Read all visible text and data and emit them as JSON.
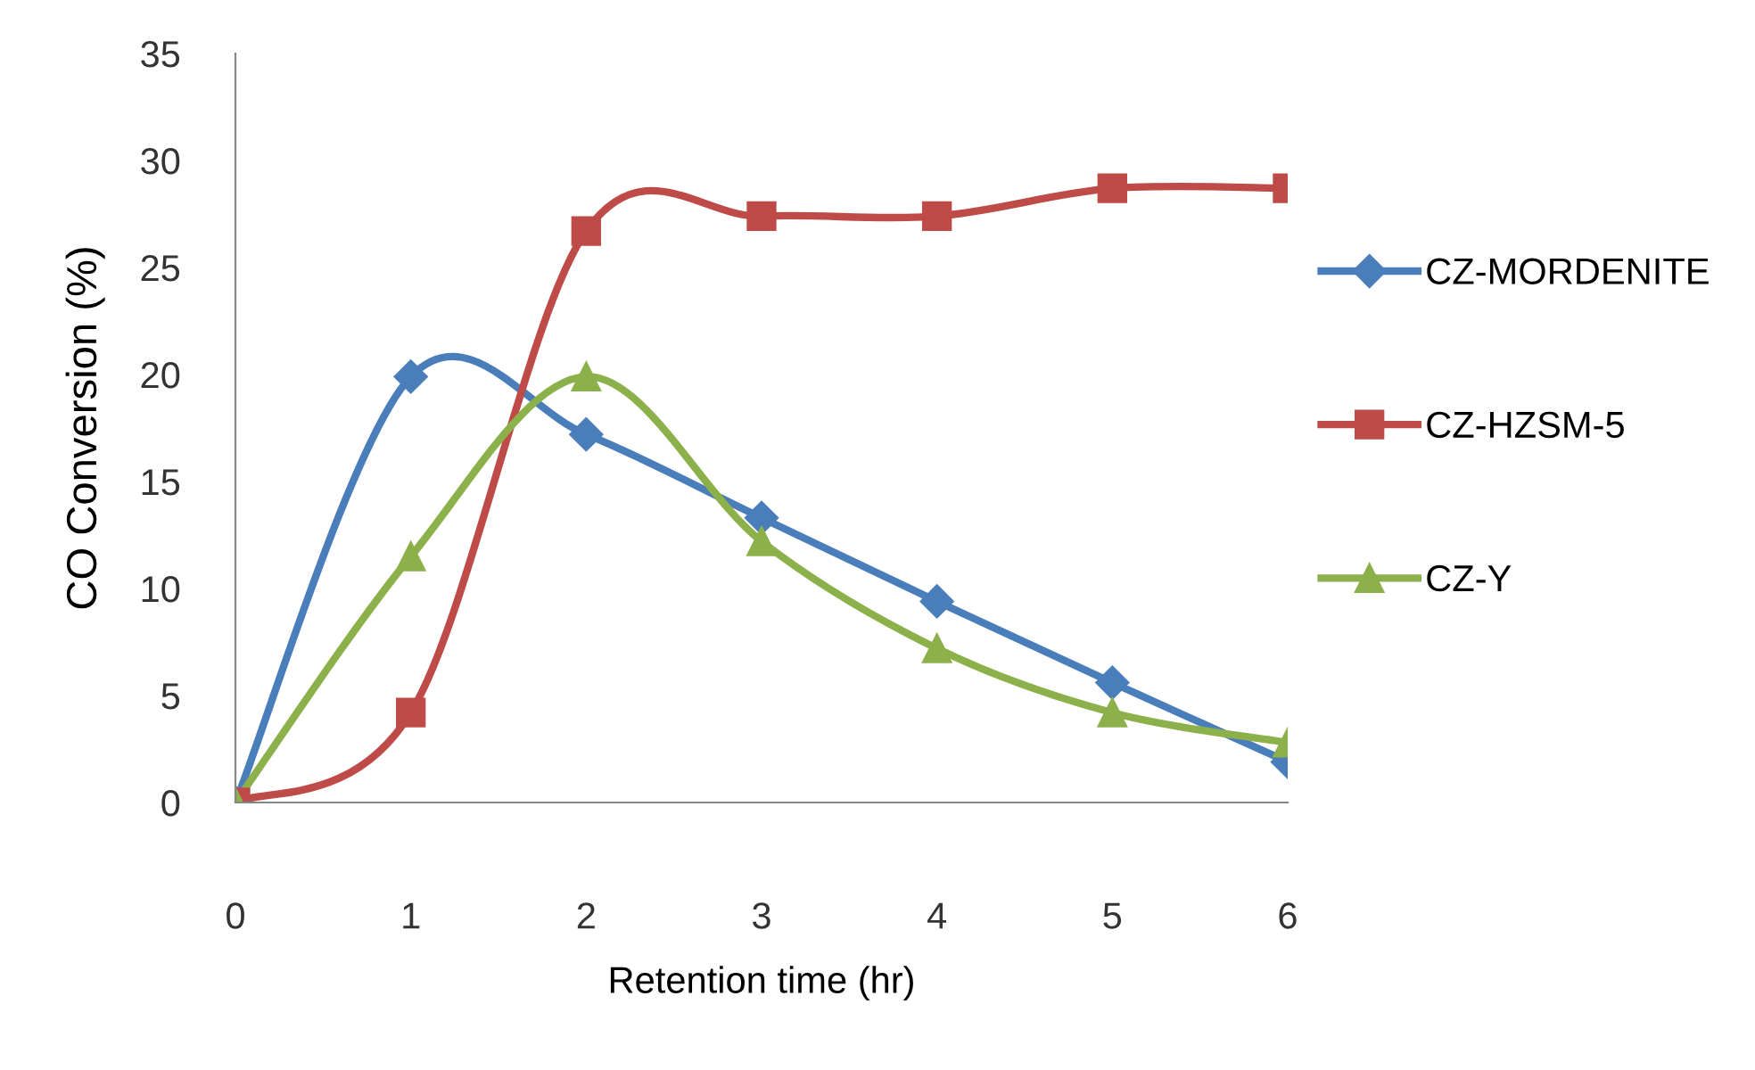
{
  "chart_data": {
    "type": "line",
    "xlabel": "Retention time (hr)",
    "ylabel": "CO Conversion (%)",
    "x": [
      0,
      1,
      2,
      3,
      4,
      5,
      6
    ],
    "series": [
      {
        "name": "CZ-MORDENITE",
        "color": "#4a7ebb",
        "marker": "diamond",
        "values": [
          0,
          19.9,
          17.2,
          13.3,
          9.4,
          5.6,
          1.9
        ]
      },
      {
        "name": "CZ-HZSM-5",
        "color": "#be4b48",
        "marker": "square",
        "values": [
          0,
          4.2,
          26.7,
          27.4,
          27.4,
          28.7,
          28.7
        ]
      },
      {
        "name": "CZ-Y",
        "color": "#8cb04a",
        "marker": "triangle",
        "values": [
          0,
          11.5,
          19.9,
          12.2,
          7.2,
          4.2,
          2.8
        ]
      }
    ],
    "xlim": [
      0,
      6
    ],
    "xticks": [
      0,
      1,
      2,
      3,
      4,
      5,
      6
    ],
    "ylim": [
      0,
      35
    ],
    "yticks": [
      0,
      5,
      10,
      15,
      20,
      25,
      30,
      35
    ],
    "grid": false,
    "legend": "right",
    "line_style": "solid"
  }
}
